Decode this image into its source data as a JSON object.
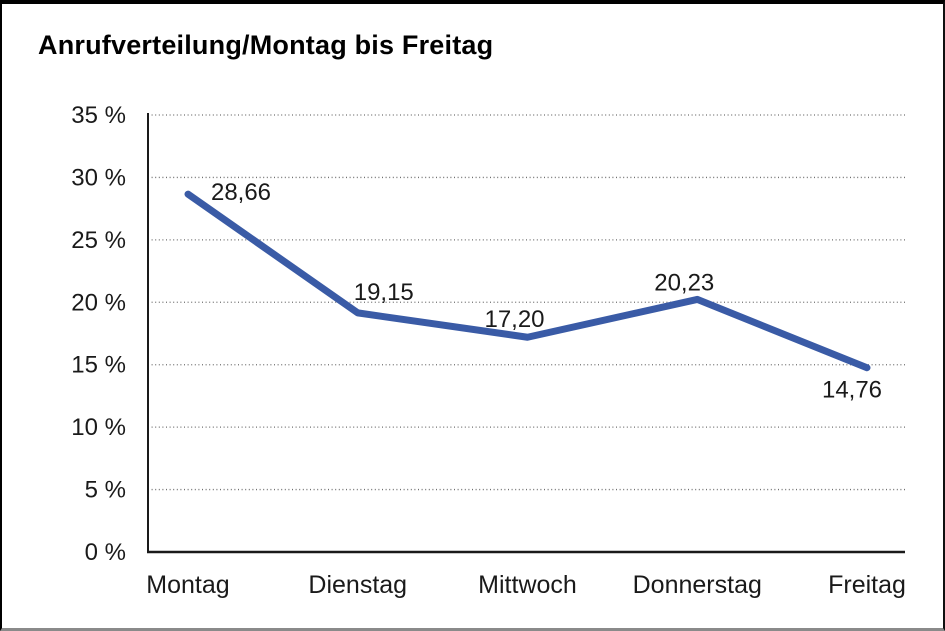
{
  "title": "Anrufverteilung/Montag bis Freitag",
  "chart_data": {
    "type": "line",
    "title": "Anrufverteilung/Montag bis Freitag",
    "categories": [
      "Montag",
      "Dienstag",
      "Mittwoch",
      "Donnerstag",
      "Freitag"
    ],
    "values": [
      28.66,
      19.15,
      17.2,
      20.23,
      14.76
    ],
    "point_labels": [
      "28,66",
      "19,15",
      "17,20",
      "20,23",
      "14,76"
    ],
    "series_name": "Anrufverteilung",
    "xlabel": "",
    "ylabel": "",
    "ylim": [
      0,
      35
    ],
    "y_tick_step": 5,
    "y_ticks": [
      0,
      5,
      10,
      15,
      20,
      25,
      30,
      35
    ],
    "y_tick_labels": [
      "0 %",
      "5 %",
      "10 %",
      "15 %",
      "20 %",
      "25 %",
      "30 %",
      "35 %"
    ],
    "grid": "horizontal-dotted",
    "legend": "none",
    "colors": {
      "line": "#3a5ba6",
      "grid": "#6f6f6f",
      "axis": "#1a1a1a",
      "text": "#1a1a1a",
      "background": "#ffffff"
    }
  }
}
